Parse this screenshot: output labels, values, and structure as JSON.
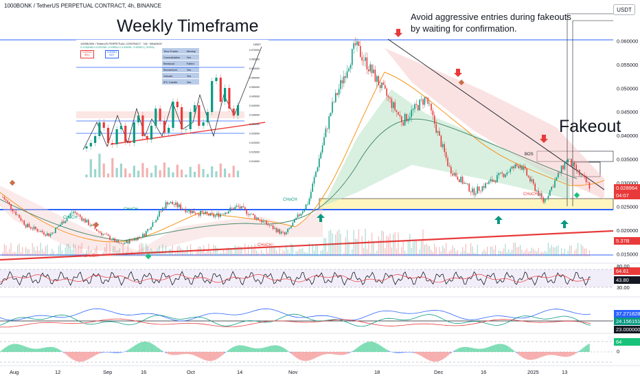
{
  "header": {
    "title": "1000BONK / TetherUS PERPETUAL CONTRACT, 4h, BINANCE",
    "currency": "USDT"
  },
  "annotations": {
    "weekly_timeframe": "Weekly Timeframe",
    "note_line1": "Avoid aggressive entries during fakeouts",
    "note_line2": "by waiting for confirmation.",
    "fakeout": "Fakeout",
    "bos": "BOS",
    "choch_labels": [
      "CHoCH",
      "CHoCH",
      "CHoCH",
      "CHoCH",
      "CHoCH",
      "CHoCH"
    ]
  },
  "price_axis": {
    "ticks": [
      "0.060000",
      "0.055000",
      "0.050000",
      "0.045000",
      "0.040000",
      "0.035000",
      "0.030000",
      "0.025000",
      "0.020000",
      "0.015000"
    ],
    "current_price": "0.028964",
    "countdown": "04:07",
    "volume": "5.37B"
  },
  "rsi_axis": {
    "ticks": [
      "80.00",
      "30.00"
    ],
    "values": [
      "64.61",
      "43.80"
    ]
  },
  "dmi_axis": {
    "values": [
      "37.271828",
      "24.156151",
      "23.000000"
    ]
  },
  "osc_axis": {
    "value": "64",
    "ticks": [
      "0"
    ]
  },
  "time_axis": [
    "Aug",
    "12",
    "Sep",
    "16",
    "Oct",
    "14",
    "Nov",
    "18",
    "Dec",
    "16",
    "2025",
    "13"
  ],
  "inset": {
    "title": "1000BONK / TetherUS PERPETUAL CONTRACT · 1W · BINANCE",
    "ohlc": "O 0.032048 H 0.037248 L 0.025510 C 0.029261 −0.002871 (−8.93%)",
    "boxes": [
      "0.029191",
      "0.029621"
    ],
    "box_sub": [
      "SELL",
      "BUY"
    ],
    "table": [
      [
        "Time Frame",
        "Weekly"
      ],
      [
        "Consolidation",
        "Yes"
      ],
      [
        "Breakout",
        "Failed"
      ],
      [
        "Momentum",
        "Yes"
      ],
      [
        "Volume",
        "Yes"
      ],
      [
        "IPC Candle",
        "Yes"
      ]
    ],
    "axis": [
      "0.070000",
      "0.065000",
      "0.060000",
      "0.055000",
      "0.050000",
      "0.045000",
      "0.040000",
      "0.035000",
      "0.030000",
      "0.025000",
      "0.020000",
      "0.015000",
      "0.010000"
    ],
    "currency": "USDT"
  },
  "chart_data": [
    {
      "type": "candlestick",
      "title": "1000BONK / TetherUS PERPETUAL CONTRACT, 4h, BINANCE",
      "x": [
        "Aug",
        "12",
        "Sep",
        "16",
        "Oct",
        "14",
        "Nov",
        "18",
        "Dec",
        "16",
        "2025",
        "13"
      ],
      "ylim": [
        0.015,
        0.0625
      ],
      "close_path": [
        [
          "Aug",
          0.027
        ],
        [
          "Aug",
          0.021
        ],
        [
          "12",
          0.019
        ],
        [
          "12",
          0.024
        ],
        [
          "Sep",
          0.02
        ],
        [
          "Sep",
          0.017
        ],
        [
          "16",
          0.019
        ],
        [
          "16",
          0.026
        ],
        [
          "Oct",
          0.024
        ],
        [
          "Oct",
          0.023
        ],
        [
          "14",
          0.025
        ],
        [
          "14",
          0.022
        ],
        [
          "Nov",
          0.019
        ],
        [
          "Nov",
          0.026
        ],
        [
          "18",
          0.046
        ],
        [
          "18",
          0.059
        ],
        [
          "18",
          0.051
        ],
        [
          "Dec",
          0.043
        ],
        [
          "Dec",
          0.048
        ],
        [
          "16",
          0.033
        ],
        [
          "16",
          0.028
        ],
        [
          "2025",
          0.031
        ],
        [
          "2025",
          0.034
        ],
        [
          "13",
          0.026
        ],
        [
          "13",
          0.035
        ],
        [
          "13",
          0.029
        ]
      ],
      "current_price": 0.028964,
      "support_zone": [
        0.0252,
        0.0271
      ],
      "resistance_box": [
        0.0352,
        0.0372
      ],
      "grid": false
    },
    {
      "type": "line",
      "title": "",
      "ylim": [
        30,
        80
      ],
      "series": [
        {
          "values": [
            55,
            60,
            48,
            52,
            65,
            58,
            45,
            50,
            62,
            66,
            55,
            48,
            60,
            64.61
          ]
        }
      ],
      "values_shown": [
        64.61,
        43.8
      ]
    },
    {
      "type": "line",
      "title": "",
      "series": [
        {
          "values": [
            23.0,
            25.0,
            30.0,
            37.27
          ]
        },
        {
          "values": [
            24.16
          ]
        },
        {
          "values": [
            23.0
          ]
        }
      ]
    },
    {
      "type": "area",
      "title": "",
      "value_shown": 64
    }
  ]
}
